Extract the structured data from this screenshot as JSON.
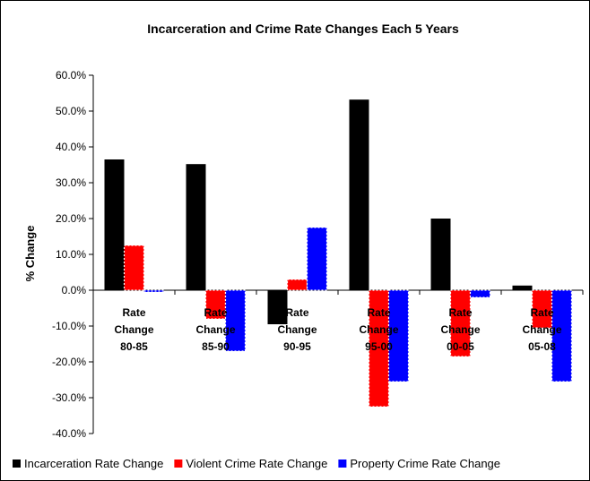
{
  "chart_data": {
    "type": "bar",
    "title": "Incarceration and Crime Rate Changes Each 5 Years",
    "xlabel": "",
    "ylabel": "% Change",
    "ylim": [
      -40,
      60
    ],
    "y_ticks": [
      "60.0%",
      "50.0%",
      "40.0%",
      "30.0%",
      "20.0%",
      "10.0%",
      "0.0%",
      "-10.0%",
      "-20.0%",
      "-30.0%",
      "-40.0%"
    ],
    "categories": [
      [
        "Rate",
        "Change",
        "80-85"
      ],
      [
        "Rate",
        "Change",
        "85-90"
      ],
      [
        "Rate",
        "Change",
        "90-95"
      ],
      [
        "Rate",
        "Change",
        "95-00"
      ],
      [
        "Rate",
        "Change",
        "00-05"
      ],
      [
        "Rate",
        "Change",
        "05-08"
      ]
    ],
    "series": [
      {
        "name": "Incarceration Rate Change",
        "color": "#000000",
        "values": [
          36.5,
          35.2,
          -9.5,
          53.2,
          20.0,
          1.3
        ]
      },
      {
        "name": "Violent Crime Rate Change",
        "color": "#ff0000",
        "values": [
          12.5,
          -8.0,
          3.0,
          -32.5,
          -18.5,
          -10.5
        ]
      },
      {
        "name": "Property Crime Rate Change",
        "color": "#0000ff",
        "values": [
          -0.5,
          -17.0,
          17.5,
          -25.5,
          -2.0,
          -25.5
        ]
      }
    ],
    "grid": false,
    "legend_position": "bottom"
  }
}
